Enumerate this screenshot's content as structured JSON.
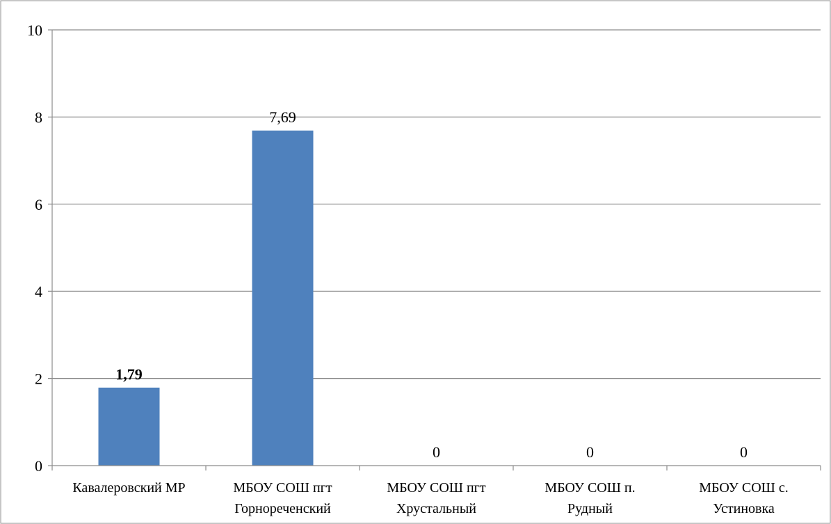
{
  "chart_data": {
    "type": "bar",
    "title": "",
    "xlabel": "",
    "ylabel": "",
    "ylim": [
      0,
      10
    ],
    "yticks": [
      "0",
      "2",
      "4",
      "6",
      "8",
      "10"
    ],
    "grid": true,
    "bar_color": "#4F81BD",
    "categories": [
      [
        "Кавалеровский МР"
      ],
      [
        "МБОУ СОШ пгт",
        "Горнореченский"
      ],
      [
        "МБОУ СОШ пгт",
        "Хрустальный"
      ],
      [
        "МБОУ СОШ п.",
        "Рудный"
      ],
      [
        "МБОУ СОШ с.",
        "Устиновка"
      ]
    ],
    "values": [
      1.79,
      7.69,
      0,
      0,
      0
    ],
    "data_labels": [
      "1,79",
      "7,69",
      "0",
      "0",
      "0"
    ],
    "data_label_bold": [
      true,
      false,
      false,
      false,
      false
    ]
  }
}
